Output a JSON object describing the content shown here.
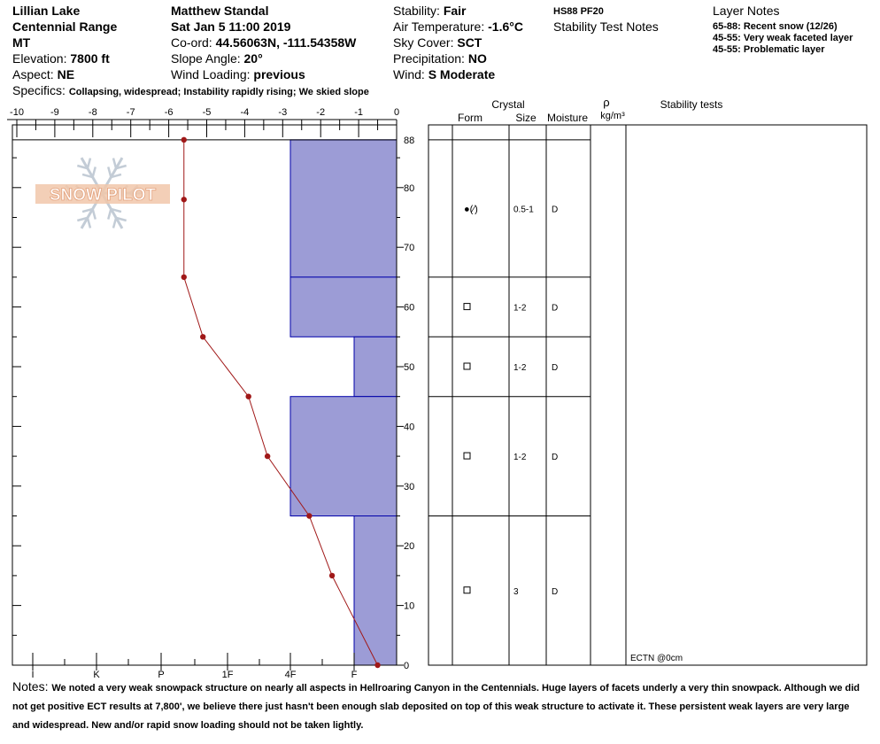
{
  "header": {
    "location": "Lillian Lake",
    "range": "Centennial Range",
    "state": "MT",
    "elevation_label": "Elevation:",
    "elevation_value": "7800 ft",
    "aspect_label": "Aspect:",
    "aspect_value": "NE",
    "observer": "Matthew Standal",
    "datetime": "Sat Jan 5 11:00 2019",
    "coord_label": "Co-ord:",
    "coord_value": "44.56063N, -111.54358W",
    "slope_label": "Slope Angle:",
    "slope_value": "20°",
    "wind_loading_label": "Wind Loading:",
    "wind_loading_value": "previous",
    "stability_label": "Stability:",
    "stability_value": "Fair",
    "air_temp_label": "Air Temperature:",
    "air_temp_value": "-1.6°C",
    "sky_label": "Sky Cover:",
    "sky_value": "SCT",
    "precip_label": "Precipitation:",
    "precip_value": "NO",
    "wind_label": "Wind:",
    "wind_value": "S Moderate",
    "hs_pf": "HS88  PF20",
    "stability_notes_title": "Stability Test Notes",
    "layer_notes_title": "Layer Notes",
    "layer_notes": [
      "65-88: Recent snow (12/26)",
      "45-55: Very weak faceted layer",
      "45-55: Problematic layer"
    ],
    "specifics_label": "Specifics:",
    "specifics_value": "Collapsing, widespread; Instability rapidly rising; We skied slope"
  },
  "logo_text": "SNOW PILOT",
  "table": {
    "crystal_header": "Crystal",
    "form_header": "Form",
    "size_header": "Size",
    "moisture_header": "Moisture",
    "rho_header": "ρ",
    "density_unit": "kg/m³",
    "stability_header": "Stability tests",
    "ectn": "ECTN @0cm",
    "layers": [
      {
        "top": 88,
        "bottom": 65,
        "form": "●(⁄)",
        "size": "0.5-1",
        "moisture": "D"
      },
      {
        "top": 65,
        "bottom": 55,
        "form": "□",
        "size": "1-2",
        "moisture": "D"
      },
      {
        "top": 55,
        "bottom": 45,
        "form": "□",
        "size": "1-2",
        "moisture": "D"
      },
      {
        "top": 45,
        "bottom": 25,
        "form": "□",
        "size": "1-2",
        "moisture": "D"
      },
      {
        "top": 25,
        "bottom": 0,
        "form": "□",
        "size": "3",
        "moisture": "D"
      }
    ]
  },
  "chart_data": {
    "type": "line",
    "temp_axis_label_values": [
      "-10",
      "-9",
      "-8",
      "-7",
      "-6",
      "-5",
      "-4",
      "-3",
      "-2",
      "-1",
      "0"
    ],
    "temp_range": [
      -10,
      0
    ],
    "height_range": [
      0,
      88
    ],
    "height_ticks": [
      "0",
      "10",
      "20",
      "30",
      "40",
      "50",
      "60",
      "70",
      "80",
      "88"
    ],
    "hardness_ticks": [
      "I",
      "K",
      "P",
      "1F",
      "4F",
      "F"
    ],
    "temperature_profile": [
      {
        "height": 88,
        "temp": -5.6
      },
      {
        "height": 78,
        "temp": -5.6
      },
      {
        "height": 65,
        "temp": -5.6
      },
      {
        "height": 55,
        "temp": -5.1
      },
      {
        "height": 45,
        "temp": -3.9
      },
      {
        "height": 35,
        "temp": -3.4
      },
      {
        "height": 25,
        "temp": -2.3
      },
      {
        "height": 15,
        "temp": -1.7
      },
      {
        "height": 0,
        "temp": -0.5
      }
    ],
    "hardness_profile": [
      {
        "top": 88,
        "bottom": 65,
        "hardness": "4F"
      },
      {
        "top": 65,
        "bottom": 55,
        "hardness": "4F"
      },
      {
        "top": 55,
        "bottom": 45,
        "hardness": "F"
      },
      {
        "top": 45,
        "bottom": 25,
        "hardness": "4F"
      },
      {
        "top": 25,
        "bottom": 0,
        "hardness": "F"
      }
    ],
    "colors": {
      "hardness_fill": "#9c9cd6",
      "hardness_stroke": "#0000aa",
      "temp_line": "#a01818"
    }
  },
  "notes": {
    "label": "Notes:",
    "text": "We noted a very weak snowpack structure on nearly all aspects in Hellroaring Canyon in the Centennials. Huge layers of facets underly a very thin snowpack. Although we did not get positive ECT results at 7,800', we believe there just hasn't been enough slab deposited on top of this weak structure to activate it. These persistent weak layers are very large and widespread. New and/or rapid snow loading should not be taken lightly."
  }
}
